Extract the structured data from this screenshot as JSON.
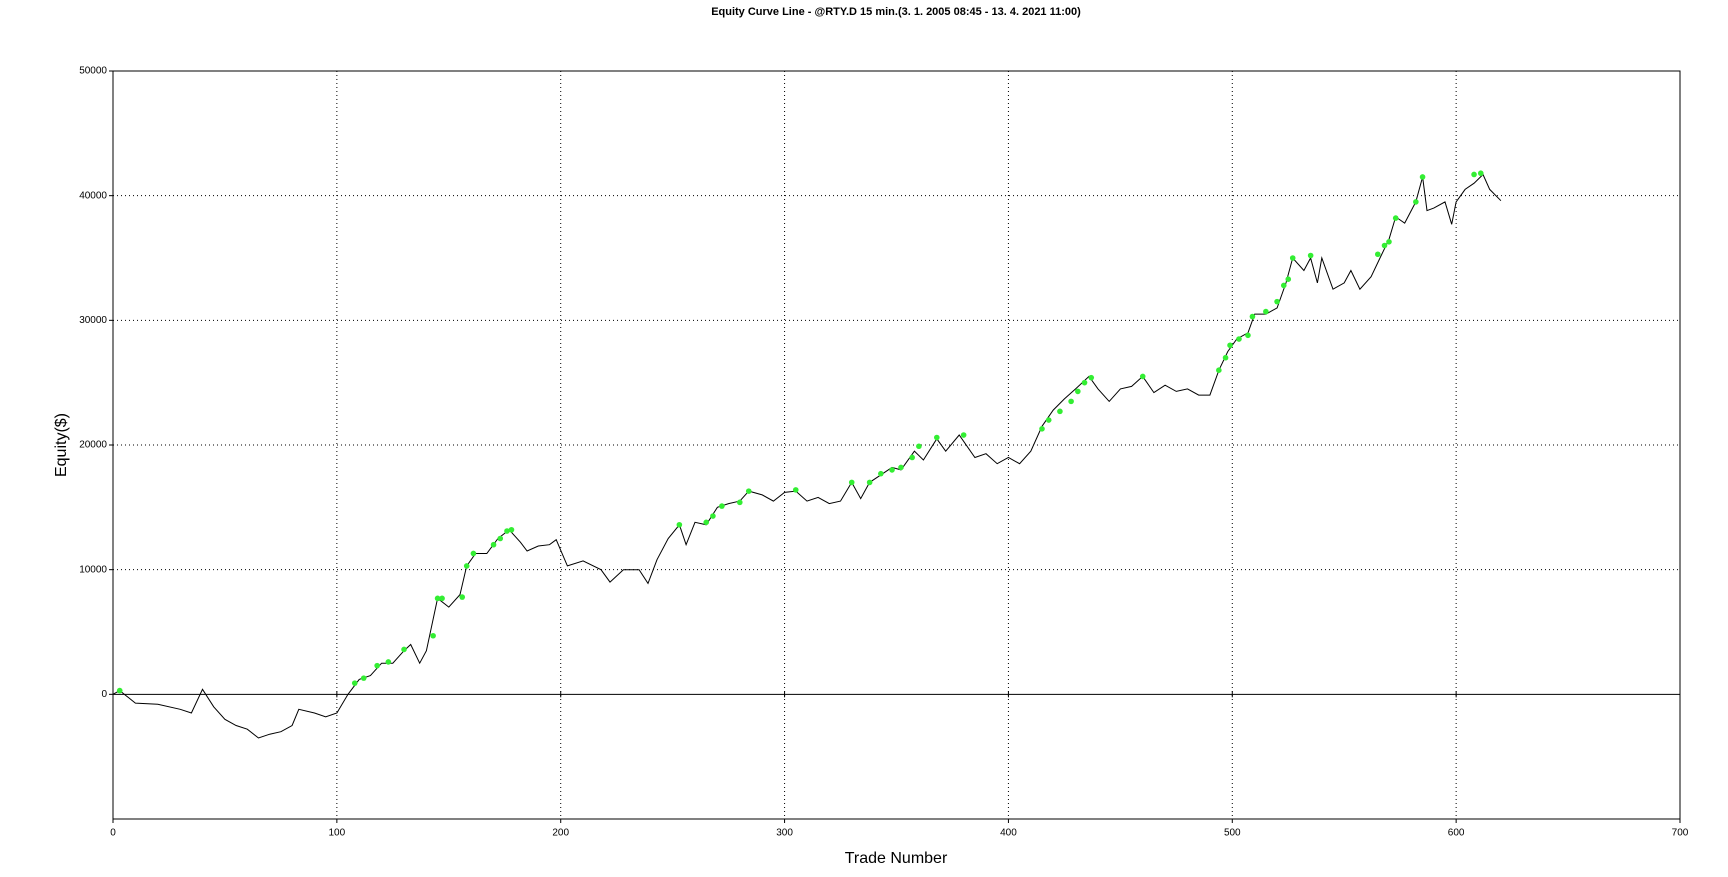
{
  "chart_data": {
    "type": "line",
    "title": "Equity Curve Line - @RTY.D 15 min.(3. 1. 2005 08:45 - 13. 4. 2021 11:00)",
    "xlabel": "Trade Number",
    "ylabel": "Equity($)",
    "xlim": [
      0,
      700
    ],
    "xticks": [
      0,
      100,
      200,
      300,
      400,
      500,
      600,
      700
    ],
    "ylim": [
      -10000,
      50000
    ],
    "yticks": [
      0,
      10000,
      20000,
      30000,
      40000,
      50000
    ],
    "grid": true,
    "x": [
      0,
      3,
      10,
      20,
      30,
      35,
      40,
      45,
      50,
      55,
      60,
      65,
      70,
      75,
      80,
      83,
      90,
      95,
      100,
      105,
      110,
      115,
      120,
      125,
      130,
      133,
      137,
      140,
      145,
      150,
      155,
      158,
      162,
      167,
      172,
      177,
      182,
      185,
      190,
      195,
      198,
      203,
      210,
      218,
      222,
      228,
      235,
      239,
      243,
      248,
      253,
      256,
      260,
      265,
      270,
      275,
      280,
      284,
      290,
      295,
      300,
      305,
      310,
      315,
      320,
      325,
      330,
      334,
      338,
      343,
      348,
      352,
      358,
      362,
      368,
      372,
      378,
      385,
      390,
      395,
      400,
      405,
      410,
      415,
      420,
      425,
      430,
      436,
      440,
      445,
      450,
      455,
      460,
      465,
      470,
      475,
      480,
      485,
      490,
      494,
      498,
      502,
      507,
      510,
      515,
      520,
      524,
      527,
      532,
      535,
      538,
      540,
      545,
      550,
      553,
      557,
      562,
      566,
      570,
      573,
      577,
      582,
      585,
      587,
      590,
      595,
      598,
      600,
      604,
      608,
      612,
      615,
      620
    ],
    "series": [
      {
        "color": "#000000",
        "values": [
          0,
          300,
          -700,
          -800,
          -1200,
          -1500,
          400,
          -1000,
          -2000,
          -2500,
          -2800,
          -3500,
          -3200,
          -3000,
          -2500,
          -1200,
          -1500,
          -1800,
          -1500,
          0,
          1200,
          1500,
          2500,
          2500,
          3500,
          4000,
          2500,
          3500,
          7700,
          7000,
          8000,
          10300,
          11300,
          11300,
          12500,
          13200,
          12200,
          11500,
          11900,
          12000,
          12400,
          10300,
          10700,
          10000,
          9000,
          10000,
          10000,
          8900,
          10800,
          12500,
          13600,
          12000,
          13800,
          13600,
          15000,
          15300,
          15500,
          16300,
          16000,
          15500,
          16200,
          16300,
          15500,
          15800,
          15300,
          15500,
          17000,
          15700,
          17000,
          17600,
          18200,
          18000,
          19500,
          18800,
          20500,
          19500,
          20800,
          19000,
          19300,
          18500,
          19000,
          18500,
          19500,
          21500,
          22800,
          23700,
          24500,
          25500,
          24500,
          23500,
          24500,
          24700,
          25500,
          24200,
          24800,
          24300,
          24500,
          24000,
          24000,
          26000,
          27500,
          28500,
          29000,
          30500,
          30500,
          31000,
          33000,
          35000,
          34000,
          35000,
          33000,
          35000,
          32500,
          33000,
          34000,
          32500,
          33500,
          35000,
          36500,
          38300,
          37800,
          39500,
          41500,
          38800,
          39000,
          39500,
          37700,
          39500,
          40500,
          41000,
          41700,
          40500,
          39600
        ]
      }
    ],
    "markers": {
      "color": "#33ee33",
      "x": [
        3,
        108,
        112,
        118,
        123,
        130,
        143,
        145,
        147,
        156,
        158,
        161,
        170,
        173,
        176,
        178,
        253,
        265,
        268,
        272,
        280,
        284,
        305,
        330,
        338,
        343,
        348,
        352,
        357,
        360,
        368,
        380,
        415,
        418,
        423,
        428,
        431,
        434,
        437,
        460,
        494,
        497,
        499,
        503,
        507,
        509,
        515,
        520,
        523,
        525,
        527,
        535,
        565,
        568,
        570,
        573,
        582,
        585,
        608,
        611
      ],
      "values": [
        300,
        900,
        1300,
        2300,
        2600,
        3600,
        4700,
        7700,
        7700,
        7800,
        10300,
        11300,
        12000,
        12500,
        13100,
        13200,
        13600,
        13800,
        14300,
        15100,
        15400,
        16300,
        16400,
        17000,
        17000,
        17700,
        18000,
        18200,
        19000,
        19900,
        20600,
        20800,
        21300,
        22000,
        22700,
        23500,
        24300,
        25000,
        25400,
        25500,
        26000,
        27000,
        28000,
        28500,
        28800,
        30300,
        30700,
        31500,
        32800,
        33300,
        35000,
        35200,
        35300,
        36000,
        36300,
        38200,
        39500,
        41500,
        41700,
        41800
      ]
    }
  }
}
